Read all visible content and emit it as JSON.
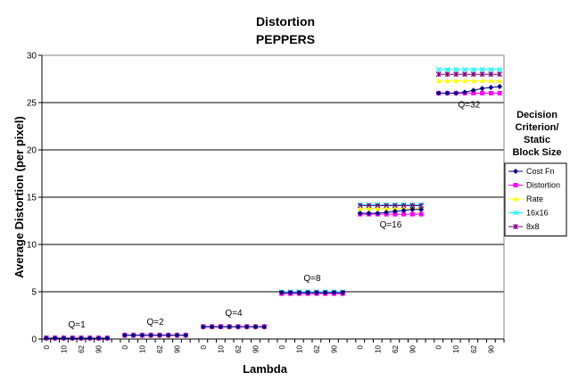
{
  "chart_data": {
    "type": "line",
    "title": "Distortion",
    "subtitle": "PEPPERS",
    "xlabel": "Lambda",
    "ylabel": "Average Distortion (per pixel)",
    "ylim": [
      0,
      30
    ],
    "yticks": [
      0,
      5,
      10,
      15,
      20,
      25,
      30
    ],
    "grid": true,
    "legend_title": [
      "Decision",
      "Criterion/",
      "Static",
      "Block Size"
    ],
    "legend_position": "right",
    "x_tick_labels": [
      "0",
      "10",
      "62",
      "90"
    ],
    "groups": [
      {
        "label": "Q=1",
        "x": [
          "0",
          "",
          "10",
          "",
          "62",
          "",
          "90",
          ""
        ],
        "series": [
          {
            "name": "Cost Fn",
            "values": [
              0.1,
              0.1,
              0.1,
              0.1,
              0.1,
              0.1,
              0.1,
              0.1
            ]
          },
          {
            "name": "Distortion",
            "values": [
              0.1,
              0.1,
              0.1,
              0.1,
              0.1,
              0.1,
              0.1,
              0.1
            ]
          },
          {
            "name": "Rate",
            "values": [
              0.1,
              0.1,
              0.1,
              0.1,
              0.1,
              0.1,
              0.1,
              0.1
            ]
          },
          {
            "name": "16x16",
            "values": [
              0.1,
              0.1,
              0.1,
              0.1,
              0.1,
              0.1,
              0.1,
              0.1
            ]
          },
          {
            "name": "8x8",
            "values": [
              0.1,
              0.1,
              0.1,
              0.1,
              0.1,
              0.1,
              0.1,
              0.1
            ]
          }
        ]
      },
      {
        "label": "Q=2",
        "x": [
          "0",
          "",
          "10",
          "",
          "62",
          "",
          "90",
          ""
        ],
        "series": [
          {
            "name": "Cost Fn",
            "values": [
              0.4,
              0.4,
              0.4,
              0.4,
              0.4,
              0.4,
              0.4,
              0.4
            ]
          },
          {
            "name": "Distortion",
            "values": [
              0.4,
              0.4,
              0.4,
              0.4,
              0.4,
              0.4,
              0.4,
              0.4
            ]
          },
          {
            "name": "Rate",
            "values": [
              0.4,
              0.4,
              0.4,
              0.4,
              0.4,
              0.4,
              0.4,
              0.4
            ]
          },
          {
            "name": "16x16",
            "values": [
              0.4,
              0.4,
              0.4,
              0.4,
              0.4,
              0.4,
              0.4,
              0.4
            ]
          },
          {
            "name": "8x8",
            "values": [
              0.4,
              0.4,
              0.4,
              0.4,
              0.4,
              0.4,
              0.4,
              0.4
            ]
          }
        ]
      },
      {
        "label": "Q=4",
        "x": [
          "0",
          "",
          "10",
          "",
          "62",
          "",
          "90",
          ""
        ],
        "series": [
          {
            "name": "Cost Fn",
            "values": [
              1.3,
              1.3,
              1.3,
              1.3,
              1.3,
              1.3,
              1.3,
              1.3
            ]
          },
          {
            "name": "Distortion",
            "values": [
              1.3,
              1.3,
              1.3,
              1.3,
              1.3,
              1.3,
              1.3,
              1.3
            ]
          },
          {
            "name": "Rate",
            "values": [
              1.3,
              1.3,
              1.3,
              1.3,
              1.3,
              1.3,
              1.3,
              1.3
            ]
          },
          {
            "name": "16x16",
            "values": [
              1.3,
              1.3,
              1.3,
              1.3,
              1.3,
              1.3,
              1.3,
              1.3
            ]
          },
          {
            "name": "8x8",
            "values": [
              1.3,
              1.3,
              1.3,
              1.3,
              1.3,
              1.3,
              1.3,
              1.3
            ]
          }
        ]
      },
      {
        "label": "Q=8",
        "x": [
          "0",
          "",
          "10",
          "",
          "62",
          "",
          "90",
          ""
        ],
        "series": [
          {
            "name": "Cost Fn",
            "values": [
              4.9,
              4.9,
              4.9,
              4.9,
              4.9,
              4.9,
              4.9,
              4.9
            ]
          },
          {
            "name": "Distortion",
            "values": [
              4.8,
              4.8,
              4.8,
              4.8,
              4.8,
              4.8,
              4.8,
              4.8
            ]
          },
          {
            "name": "Rate",
            "values": [
              4.9,
              4.9,
              4.9,
              4.9,
              4.9,
              4.9,
              4.9,
              4.9
            ]
          },
          {
            "name": "16x16",
            "values": [
              5.0,
              5.0,
              5.0,
              5.0,
              5.0,
              5.0,
              5.0,
              5.0
            ]
          },
          {
            "name": "8x8",
            "values": [
              4.9,
              4.9,
              4.9,
              4.9,
              4.9,
              4.9,
              4.9,
              4.9
            ]
          }
        ]
      },
      {
        "label": "Q=16",
        "x": [
          "0",
          "",
          "10",
          "",
          "62",
          "",
          "90",
          ""
        ],
        "series": [
          {
            "name": "Cost Fn",
            "values": [
              13.3,
              13.3,
              13.3,
              13.4,
              13.5,
              13.6,
              13.7,
              13.7
            ]
          },
          {
            "name": "Distortion",
            "values": [
              13.2,
              13.2,
              13.2,
              13.2,
              13.2,
              13.2,
              13.2,
              13.2
            ]
          },
          {
            "name": "Rate",
            "values": [
              13.8,
              13.8,
              13.8,
              13.8,
              13.8,
              13.8,
              13.8,
              13.8
            ]
          },
          {
            "name": "16x16",
            "values": [
              14.2,
              14.2,
              14.2,
              14.2,
              14.2,
              14.2,
              14.2,
              14.2
            ]
          },
          {
            "name": "8x8",
            "values": [
              14.1,
              14.1,
              14.1,
              14.1,
              14.1,
              14.1,
              14.1,
              14.1
            ]
          }
        ]
      },
      {
        "label": "Q=32",
        "x": [
          "0",
          "",
          "10",
          "",
          "62",
          "",
          "90",
          ""
        ],
        "series": [
          {
            "name": "Cost Fn",
            "values": [
              26.0,
              26.0,
              26.0,
              26.1,
              26.3,
              26.5,
              26.6,
              26.7
            ]
          },
          {
            "name": "Distortion",
            "values": [
              26.0,
              26.0,
              26.0,
              26.0,
              26.0,
              26.0,
              26.0,
              26.0
            ]
          },
          {
            "name": "Rate",
            "values": [
              27.3,
              27.3,
              27.3,
              27.3,
              27.3,
              27.3,
              27.3,
              27.3
            ]
          },
          {
            "name": "16x16",
            "values": [
              28.5,
              28.5,
              28.5,
              28.5,
              28.5,
              28.5,
              28.5,
              28.5
            ]
          },
          {
            "name": "8x8",
            "values": [
              28.0,
              28.0,
              28.0,
              28.0,
              28.0,
              28.0,
              28.0,
              28.0
            ]
          }
        ]
      }
    ],
    "series_styles": [
      {
        "name": "Cost Fn",
        "color": "#000080",
        "marker": "diamond"
      },
      {
        "name": "Distortion",
        "color": "#ff00ff",
        "marker": "square"
      },
      {
        "name": "Rate",
        "color": "#ffff00",
        "marker": "triangle"
      },
      {
        "name": "16x16",
        "color": "#00ffff",
        "marker": "x"
      },
      {
        "name": "8x8",
        "color": "#800080",
        "marker": "star"
      }
    ]
  }
}
